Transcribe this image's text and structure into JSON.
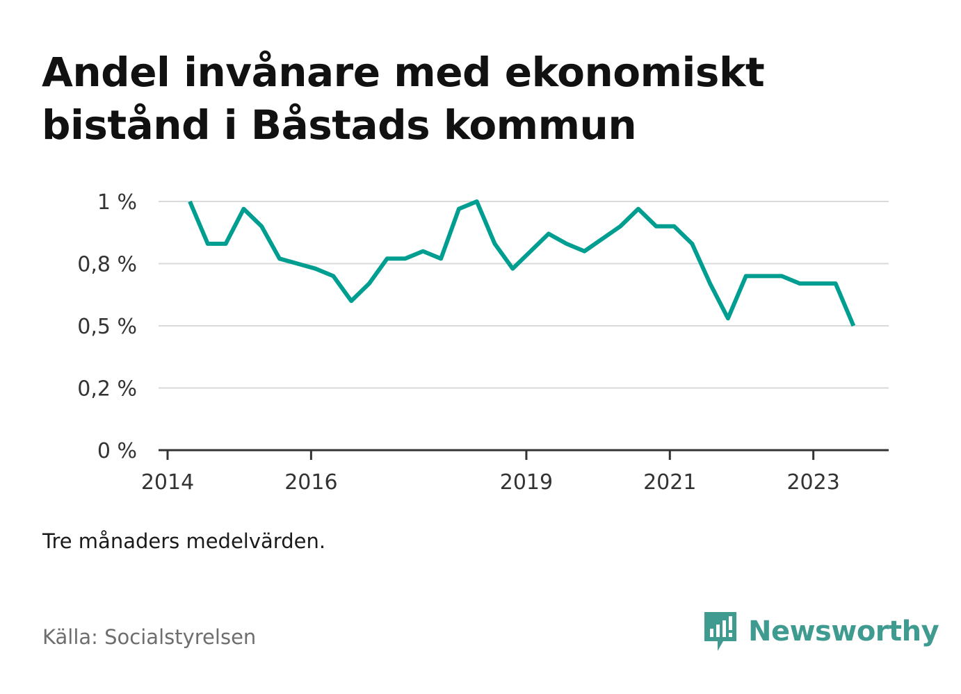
{
  "title_lines": [
    "Andel invånare med ekonomiskt",
    "bistånd i Båstads kommun"
  ],
  "note": "Tre månaders medelvärden.",
  "source": "Källa: Socialstyrelsen",
  "brand": {
    "name": "Newsworthy",
    "icon": "newsworthy-logo-icon",
    "color": "#3f9a90"
  },
  "chart_data": {
    "type": "line",
    "title": "Andel invånare med ekonomiskt bistånd i Båstads kommun",
    "xlabel": "",
    "ylabel": "",
    "y_ticks": [
      {
        "value": 0,
        "label": "0 %"
      },
      {
        "value": 0.25,
        "label": "0,2 %"
      },
      {
        "value": 0.5,
        "label": "0,5 %"
      },
      {
        "value": 0.75,
        "label": "0,8 %"
      },
      {
        "value": 1.0,
        "label": "1 %"
      }
    ],
    "x_ticks": [
      {
        "value": 2014,
        "label": "2014"
      },
      {
        "value": 2016,
        "label": "2016"
      },
      {
        "value": 2019,
        "label": "2019"
      },
      {
        "value": 2021,
        "label": "2021"
      },
      {
        "value": 2023,
        "label": "2023"
      }
    ],
    "xlim": [
      2014,
      2024.05
    ],
    "ylim": [
      0,
      1.0
    ],
    "grid": true,
    "line_color": "#009e91",
    "series": [
      {
        "x": [
          2014.31,
          2014.56,
          2014.81,
          2015.06,
          2015.31,
          2015.56,
          2015.81,
          2016.06,
          2016.31,
          2016.56,
          2016.81,
          2017.06,
          2017.31,
          2017.56,
          2017.81,
          2018.06,
          2018.31,
          2018.56,
          2018.81,
          2019.06,
          2019.31,
          2019.56,
          2019.81,
          2020.06,
          2020.31,
          2020.56,
          2020.81,
          2021.06,
          2021.31,
          2021.56,
          2021.81,
          2022.06,
          2022.31,
          2022.56,
          2022.81,
          2023.06,
          2023.31,
          2023.56
        ],
        "values": [
          1.0,
          0.83,
          0.83,
          0.97,
          0.9,
          0.77,
          0.75,
          0.73,
          0.7,
          0.6,
          0.67,
          0.77,
          0.77,
          0.8,
          0.77,
          0.97,
          1.0,
          0.83,
          0.73,
          0.8,
          0.87,
          0.83,
          0.8,
          0.85,
          0.9,
          0.97,
          0.9,
          0.9,
          0.83,
          0.67,
          0.53,
          0.7,
          0.7,
          0.7,
          0.67,
          0.67,
          0.67,
          0.5
        ]
      }
    ]
  }
}
